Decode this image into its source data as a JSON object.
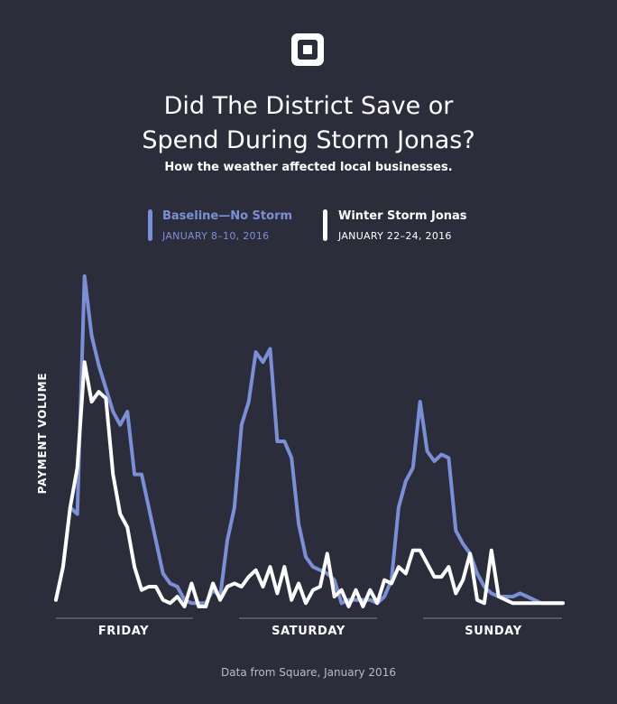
{
  "title_line1": "Did The District Save or",
  "title_line2": "Spend During Storm Jonas?",
  "subtitle": "How the weather affected local businesses.",
  "logo_icon": "square-logo",
  "colors": {
    "background": "#2b2e3a",
    "baseline": "#7b8fd8",
    "storm": "#ffffff",
    "axis": "#7c8090"
  },
  "legend": [
    {
      "name": "Baseline—No Storm",
      "dates": "JANUARY 8–10, 2016",
      "color": "#7b8fd8"
    },
    {
      "name": "Winter Storm Jonas",
      "dates": "JANUARY 22–24, 2016",
      "color": "#ffffff"
    }
  ],
  "source": "Data from Square, January 2016",
  "chart_data": {
    "type": "line",
    "ylabel": "PAYMENT VOLUME",
    "ylim": [
      0,
      100
    ],
    "days": [
      "FRIDAY",
      "SATURDAY",
      "SUNDAY"
    ],
    "series": [
      {
        "name": "Baseline—No Storm",
        "color": "#7b8fd8",
        "x": [
          0,
          1,
          2,
          3,
          4,
          5,
          6,
          7,
          8,
          9,
          10,
          11,
          12,
          13,
          14,
          15,
          16,
          17,
          18,
          19,
          20,
          21,
          22,
          23,
          24,
          25,
          26,
          27,
          28,
          29,
          30,
          31,
          32,
          33,
          34,
          35,
          36,
          37,
          38,
          39,
          40,
          41,
          42,
          43,
          44,
          45,
          46,
          47,
          48,
          49,
          50,
          51,
          52,
          53,
          54,
          55,
          56,
          57,
          58,
          59,
          60,
          61,
          62,
          63,
          64,
          65,
          66,
          67,
          68,
          69,
          70,
          71
        ],
        "values": [
          2,
          12,
          30,
          28,
          100,
          82,
          73,
          66,
          59,
          55,
          59,
          40,
          40,
          30,
          20,
          10,
          7,
          6,
          2,
          1,
          1,
          1,
          5,
          3,
          20,
          30,
          55,
          62,
          77,
          74,
          78,
          50,
          50,
          45,
          25,
          15,
          12,
          11,
          10,
          8,
          1,
          2,
          2,
          2,
          2,
          1,
          3,
          8,
          30,
          38,
          42,
          62,
          47,
          44,
          46,
          45,
          23,
          19,
          16,
          10,
          6,
          4,
          3,
          3,
          3,
          4,
          3,
          2,
          1,
          1,
          1,
          1
        ]
      },
      {
        "name": "Winter Storm Jonas",
        "color": "#ffffff",
        "x": [
          0,
          1,
          2,
          3,
          4,
          5,
          6,
          7,
          8,
          9,
          10,
          11,
          12,
          13,
          14,
          15,
          16,
          17,
          18,
          19,
          20,
          21,
          22,
          23,
          24,
          25,
          26,
          27,
          28,
          29,
          30,
          31,
          32,
          33,
          34,
          35,
          36,
          37,
          38,
          39,
          40,
          41,
          42,
          43,
          44,
          45,
          46,
          47,
          48,
          49,
          50,
          51,
          52,
          53,
          54,
          55,
          56,
          57,
          58,
          59,
          60,
          61,
          62,
          63,
          64,
          65,
          66,
          67,
          68,
          69,
          70,
          71
        ],
        "values": [
          2,
          12,
          30,
          42,
          74,
          62,
          65,
          63,
          40,
          28,
          24,
          12,
          5,
          6,
          6,
          2,
          1,
          3,
          0,
          7,
          0,
          0,
          7,
          2,
          6,
          7,
          6,
          9,
          11,
          6,
          12,
          4,
          12,
          2,
          7,
          1,
          5,
          6,
          16,
          3,
          5,
          0,
          5,
          0,
          5,
          1,
          8,
          7,
          12,
          10,
          17,
          17,
          13,
          9,
          9,
          12,
          4,
          8,
          16,
          2,
          1,
          17,
          3,
          2,
          1,
          1,
          1,
          1,
          1,
          1,
          1,
          1
        ]
      }
    ]
  }
}
